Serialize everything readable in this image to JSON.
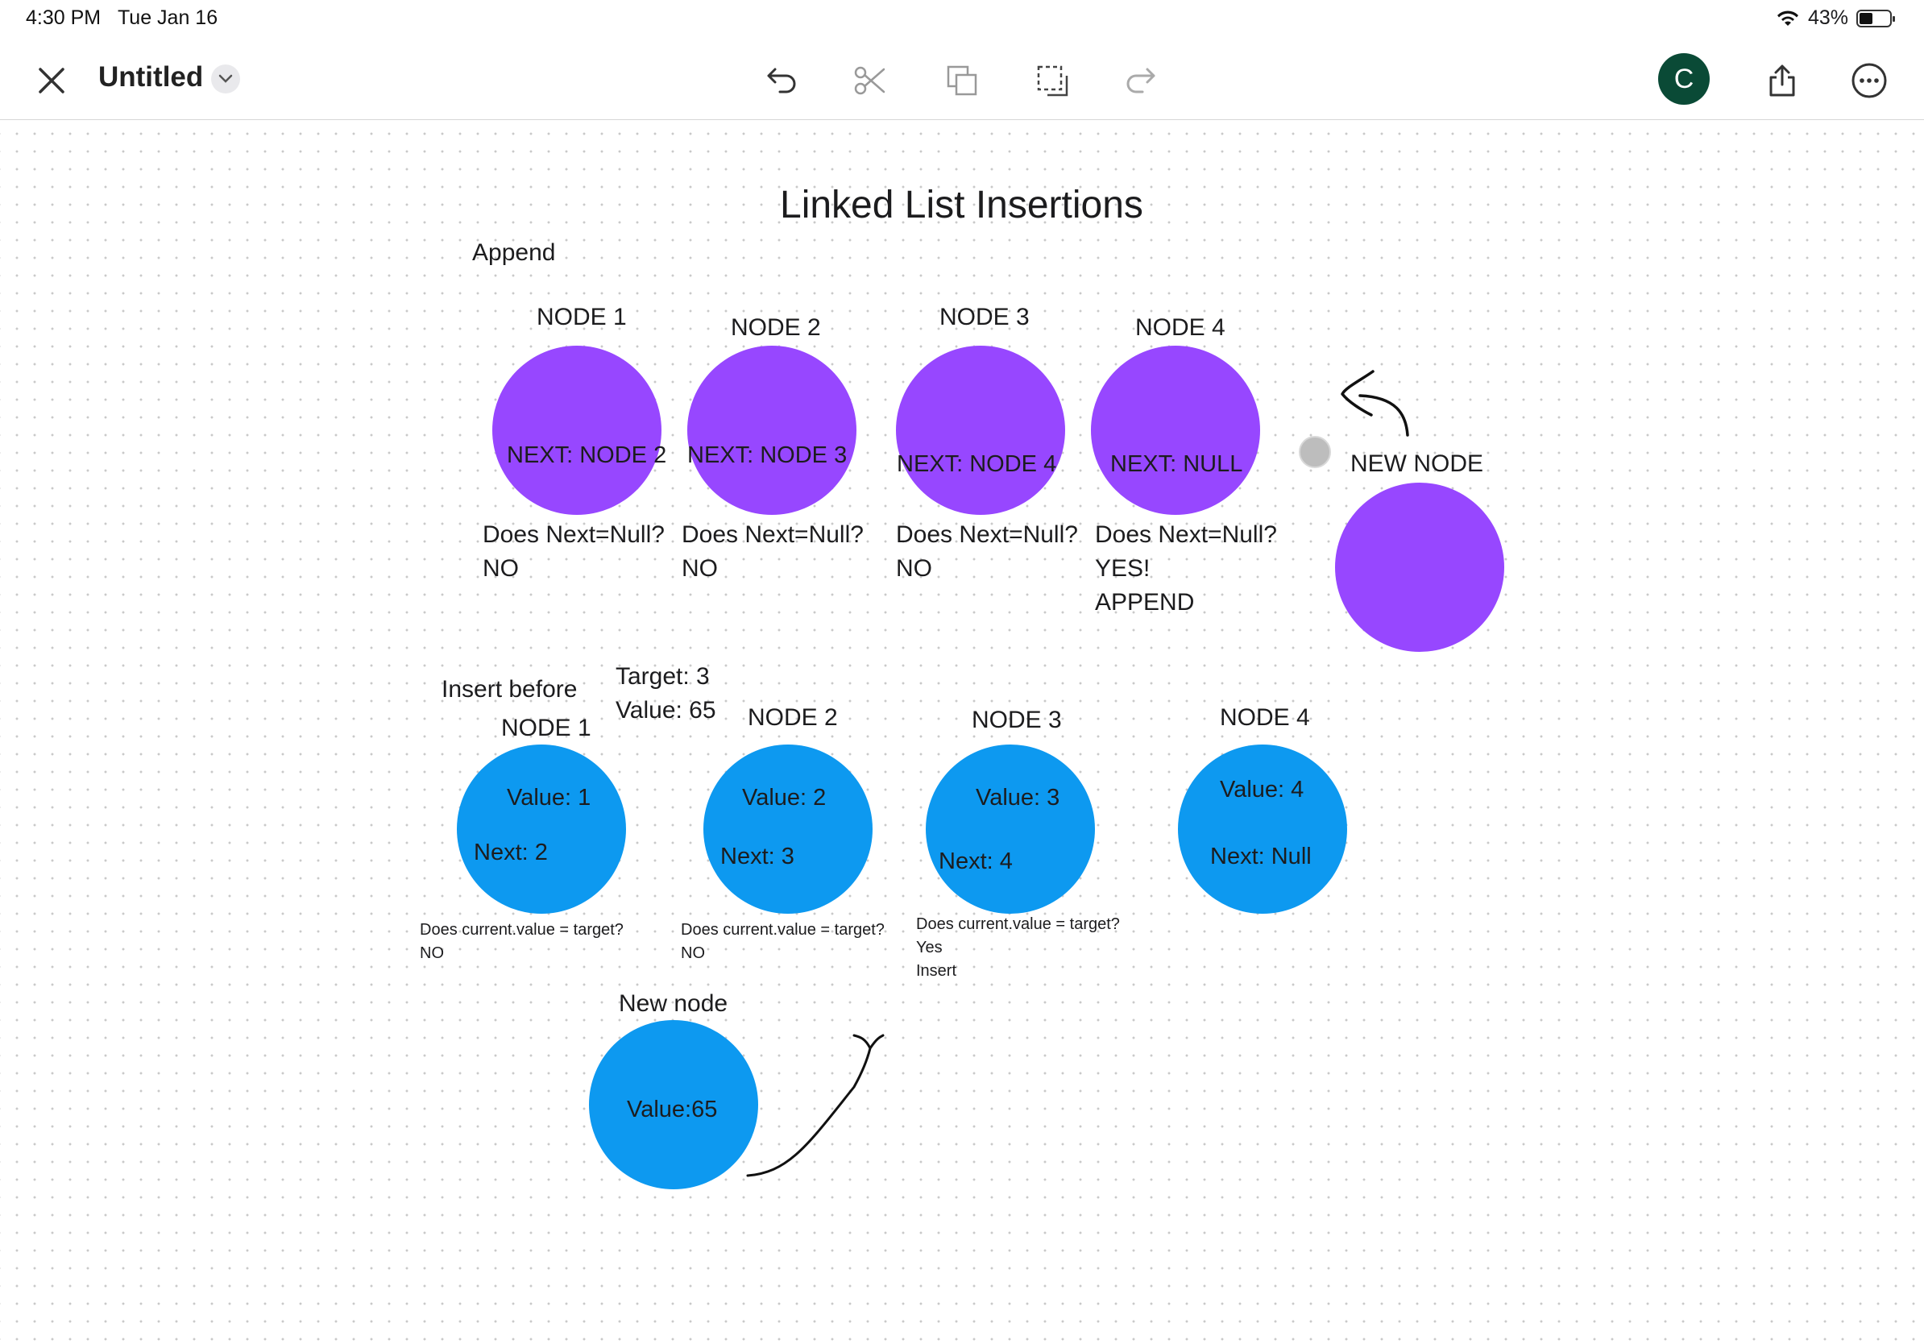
{
  "status": {
    "time": "4:30 PM",
    "date": "Tue Jan 16",
    "battery": "43%"
  },
  "toolbar": {
    "title": "Untitled",
    "avatar_initial": "C",
    "icons": [
      "close-icon",
      "chevron-down-icon",
      "undo-icon",
      "cut-icon",
      "duplicate-icon",
      "select-icon",
      "redo-icon",
      "share-icon",
      "more-icon"
    ]
  },
  "canvas": {
    "title": "Linked List Insertions",
    "append": {
      "section_label": "Append",
      "nodes": [
        {
          "label": "NODE 1",
          "inner": "NEXT: NODE 2",
          "question": "Does Next=Null?",
          "answer": [
            "NO"
          ]
        },
        {
          "label": "NODE 2",
          "inner": "NEXT: NODE 3",
          "question": "Does Next=Null?",
          "answer": [
            "NO"
          ]
        },
        {
          "label": "NODE 3",
          "inner": "NEXT: NODE 4",
          "question": "Does Next=Null?",
          "answer": [
            "NO"
          ]
        },
        {
          "label": "NODE 4",
          "inner": "NEXT: NULL",
          "question": "Does Next=Null?",
          "answer": [
            "YES!",
            "APPEND"
          ]
        }
      ],
      "new_node_label": "NEW NODE"
    },
    "insert_before": {
      "section_label": "Insert before",
      "target": "Target: 3",
      "value": "Value: 65",
      "nodes": [
        {
          "label": "NODE 1",
          "value": "Value: 1",
          "next": "Next:  2",
          "question": "Does current.value = target?",
          "answer": [
            "NO"
          ]
        },
        {
          "label": "NODE 2",
          "value": "Value: 2",
          "next": "Next:  3",
          "question": "Does current.value = target?",
          "answer": [
            "NO"
          ]
        },
        {
          "label": "NODE 3",
          "value": "Value: 3",
          "next": "Next:  4",
          "question": "Does current.value = target?",
          "answer": [
            "Yes",
            "Insert"
          ]
        },
        {
          "label": "NODE 4",
          "value": "Value: 4",
          "next": "Next: Null"
        }
      ],
      "new_node": {
        "label": "New node",
        "value": "Value:65"
      }
    },
    "colors": {
      "purple_node": "#9747ff",
      "blue_node": "#0d99f0",
      "avatar": "#0a4a36"
    }
  }
}
